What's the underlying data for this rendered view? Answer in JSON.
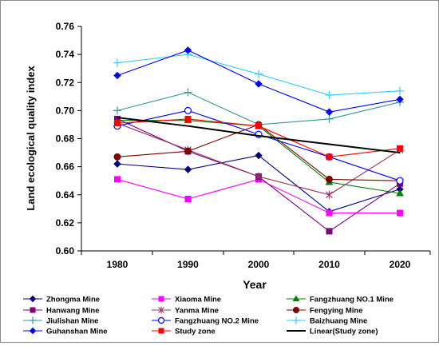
{
  "chart_data": {
    "type": "line",
    "title": "",
    "xlabel": "Year",
    "ylabel": "Land ecological quality index",
    "categories": [
      "1980",
      "1990",
      "2000",
      "2010",
      "2020"
    ],
    "ylim": [
      0.6,
      0.76
    ],
    "ytick_labels": [
      "0.60",
      "0.62",
      "0.64",
      "0.66",
      "0.68",
      "0.70",
      "0.72",
      "0.74",
      "0.76"
    ],
    "grid": false,
    "legend_position": "bottom",
    "series": [
      {
        "name": "Zhongma Mine",
        "color": "#000080",
        "marker": "diamond",
        "values": [
          0.662,
          0.658,
          0.668,
          0.628,
          0.644
        ]
      },
      {
        "name": "Xiaoma Mine",
        "color": "#ff00ff",
        "marker": "square",
        "values": [
          0.651,
          0.637,
          0.651,
          0.627,
          0.627
        ]
      },
      {
        "name": "Fangzhuang NO.1 Mine",
        "color": "#008000",
        "marker": "triangle",
        "values": [
          0.693,
          0.693,
          0.689,
          0.649,
          0.641
        ]
      },
      {
        "name": "Hanwang Mine",
        "color": "#800080",
        "marker": "square",
        "values": [
          0.694,
          0.671,
          0.653,
          0.614,
          0.648
        ]
      },
      {
        "name": "Yanma Mine",
        "color": "#993366",
        "marker": "star",
        "values": [
          0.691,
          0.672,
          0.653,
          0.64,
          0.672
        ]
      },
      {
        "name": "Fengying Mine",
        "color": "#800000",
        "marker": "circle",
        "values": [
          0.667,
          0.671,
          0.69,
          0.651,
          0.65
        ]
      },
      {
        "name": "Jiulishan Mine",
        "color": "#339999",
        "marker": "plus",
        "values": [
          0.7,
          0.713,
          0.69,
          0.694,
          0.706
        ]
      },
      {
        "name": "Fangzhuang NO.2 Mine",
        "color": "#0000ff",
        "marker": "circle-open",
        "values": [
          0.689,
          0.7,
          0.683,
          0.667,
          0.65
        ]
      },
      {
        "name": "Baizhuang Mine",
        "color": "#33ccff",
        "marker": "plus",
        "values": [
          0.734,
          0.74,
          0.726,
          0.711,
          0.714
        ]
      },
      {
        "name": "Guhanshan Mine",
        "color": "#0000ff",
        "marker": "diamond",
        "values": [
          0.725,
          0.743,
          0.719,
          0.699,
          0.708
        ]
      },
      {
        "name": "Study zone",
        "color": "#ff0000",
        "marker": "square",
        "values": [
          0.691,
          0.694,
          0.689,
          0.667,
          0.673
        ]
      },
      {
        "name": "Linear(Study zone)",
        "color": "#000000",
        "marker": "none",
        "values": [
          0.695,
          0.689,
          0.682,
          0.676,
          0.67
        ]
      }
    ]
  }
}
